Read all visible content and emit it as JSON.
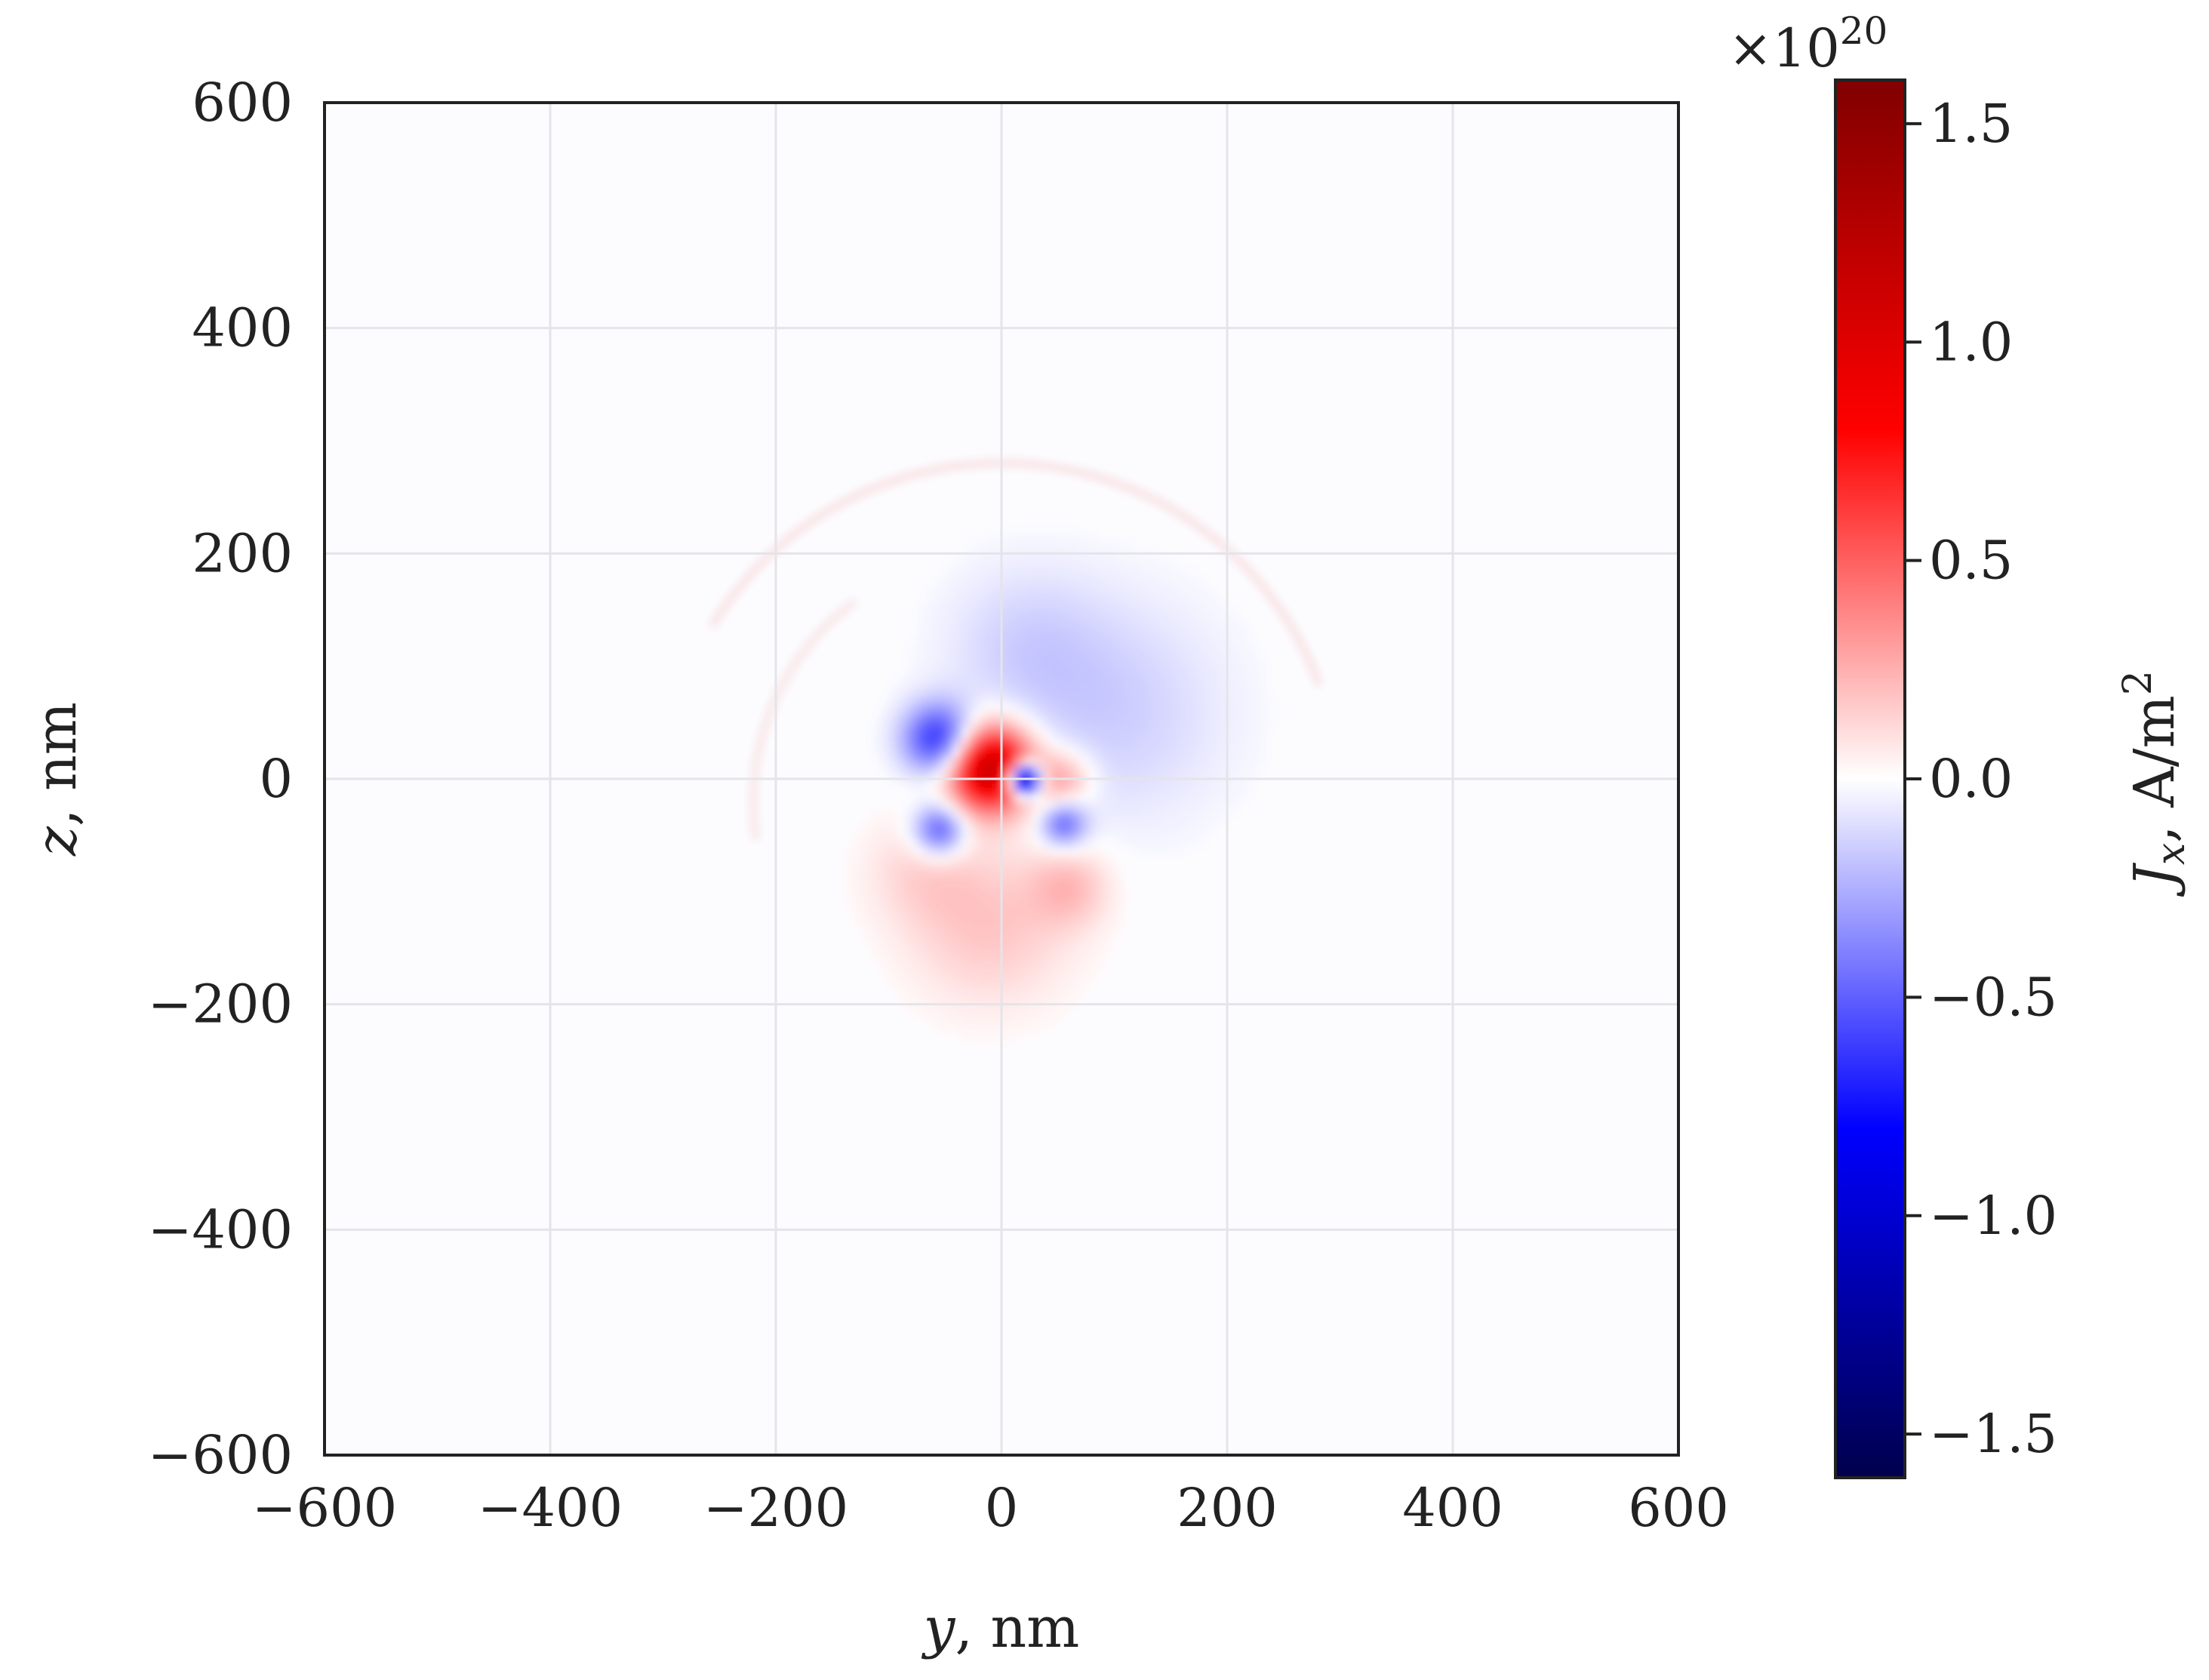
{
  "chart_data": {
    "type": "heatmap",
    "xlabel": {
      "symbol": "y",
      "unit": ", nm"
    },
    "ylabel": {
      "symbol": "z",
      "unit": ", nm"
    },
    "xlim": [
      -600,
      600
    ],
    "ylim": [
      -600,
      600
    ],
    "xticks": [
      -600,
      -400,
      -200,
      0,
      200,
      400,
      600
    ],
    "yticks": [
      -600,
      -400,
      -200,
      0,
      200,
      400,
      600
    ],
    "x_tick_labels": [
      "−600",
      "−400",
      "−200",
      "0",
      "200",
      "400",
      "600"
    ],
    "y_tick_labels": [
      "−600",
      "−400",
      "−200",
      "0",
      "200",
      "400",
      "600"
    ],
    "grid": true,
    "colormap": "seismic",
    "colorbar": {
      "label": {
        "symbol": "J",
        "subscript": "x",
        "unit": ", A/m",
        "superscript": "2"
      },
      "range": [
        -1.6,
        1.6
      ],
      "ticks": [
        1.5,
        1.0,
        0.5,
        0.0,
        -0.5,
        -1.0,
        -1.5
      ],
      "tick_labels": [
        "1.5",
        "1.0",
        "0.5",
        "0.0",
        "−0.5",
        "−1.0",
        "−1.5"
      ],
      "multiplier": {
        "base": "×10",
        "exponent": "20"
      }
    },
    "features": [
      {
        "y": -10,
        "z": 10,
        "value": 1.2,
        "sigma": 26
      },
      {
        "y": 20,
        "z": 0,
        "value": -1.5,
        "sigma": 10
      },
      {
        "y": -55,
        "z": 35,
        "value": -0.7,
        "sigma": 22
      },
      {
        "y": -55,
        "z": -45,
        "value": -0.55,
        "sigma": 16
      },
      {
        "y": 55,
        "z": -40,
        "value": -0.45,
        "sigma": 14
      },
      {
        "y": 100,
        "z": 60,
        "value": -0.15,
        "sigma": 70
      },
      {
        "y": 20,
        "z": 120,
        "value": -0.12,
        "sigma": 50
      },
      {
        "y": -10,
        "z": -130,
        "value": 0.18,
        "sigma": 50
      },
      {
        "y": -70,
        "z": -80,
        "value": 0.12,
        "sigma": 35
      },
      {
        "y": 55,
        "z": 0,
        "value": 0.3,
        "sigma": 18
      },
      {
        "y": 60,
        "z": -95,
        "value": 0.2,
        "sigma": 25
      }
    ]
  }
}
